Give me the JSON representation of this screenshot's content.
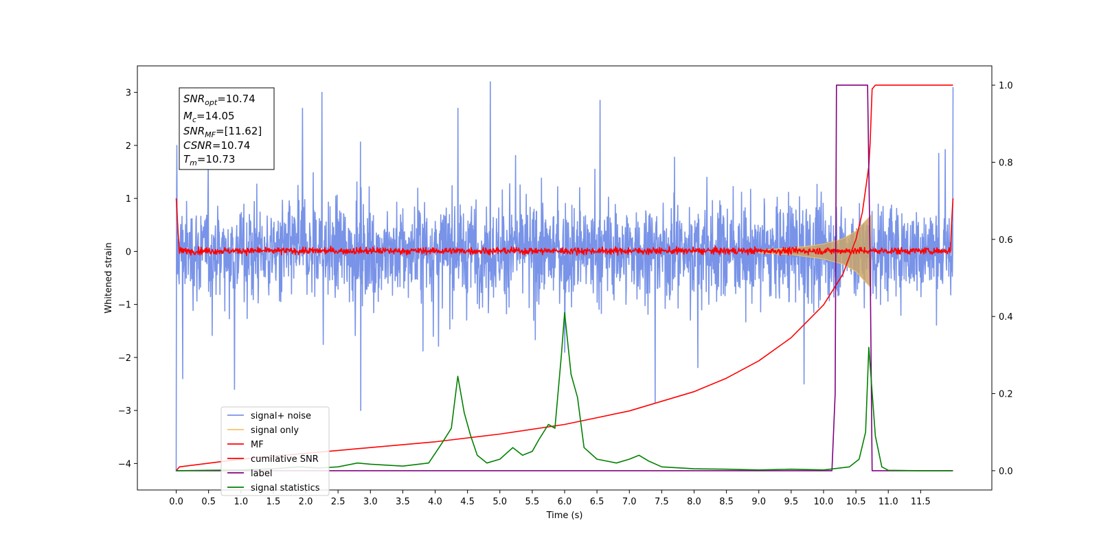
{
  "chart_data": {
    "type": "line",
    "title": "",
    "xlabel": "Time (s)",
    "ylabel": "Whitened strain",
    "xlim": [
      -0.6,
      12.6
    ],
    "ylim": [
      -4.5,
      3.5
    ],
    "y2lim": [
      -0.05,
      1.05
    ],
    "x_ticks": [
      "0.0",
      "0.5",
      "1.0",
      "1.5",
      "2.0",
      "2.5",
      "3.0",
      "3.5",
      "4.0",
      "4.5",
      "5.0",
      "5.5",
      "6.0",
      "6.5",
      "7.0",
      "7.5",
      "8.0",
      "8.5",
      "9.0",
      "9.5",
      "10.0",
      "10.5",
      "11.0",
      "11.5"
    ],
    "y_ticks": [
      "3",
      "2",
      "1",
      "0",
      "−1",
      "−2",
      "−3",
      "−4"
    ],
    "y2_ticks": [
      "0.0",
      "0.2",
      "0.4",
      "0.6",
      "0.8",
      "1.0"
    ],
    "grid": false,
    "legend_position": "lower-left",
    "annotation": {
      "snr_opt": "=10.74",
      "mc": "=14.05",
      "snr_mf": "=[11.62]",
      "csnr": "=10.74",
      "tm": "=10.73"
    },
    "series": [
      {
        "name": "signal+ noise",
        "color": "#7893e8",
        "kind": "noise band",
        "x_range": [
          0,
          12
        ],
        "y_typical_range": [
          -1.6,
          1.6
        ],
        "peak_values": [
          {
            "x": 0.0,
            "y": -4.15
          },
          {
            "x": 0.01,
            "y": 2.0
          },
          {
            "x": 0.1,
            "y": -2.4
          },
          {
            "x": 0.9,
            "y": -2.6
          },
          {
            "x": 1.95,
            "y": 2.7
          },
          {
            "x": 2.25,
            "y": 3.0
          },
          {
            "x": 2.85,
            "y": -3.0
          },
          {
            "x": 4.35,
            "y": 2.7
          },
          {
            "x": 4.85,
            "y": 3.2
          },
          {
            "x": 6.0,
            "y": -1.9
          },
          {
            "x": 6.55,
            "y": 2.85
          },
          {
            "x": 7.4,
            "y": -2.85
          },
          {
            "x": 9.7,
            "y": -2.5
          },
          {
            "x": 12.0,
            "y": 3.1
          }
        ]
      },
      {
        "name": "signal only",
        "color": "#f5c26b",
        "kind": "chirp envelope",
        "points": [
          [
            9.0,
            0.03
          ],
          [
            9.5,
            0.06
          ],
          [
            10.0,
            0.14
          ],
          [
            10.3,
            0.24
          ],
          [
            10.5,
            0.38
          ],
          [
            10.65,
            0.58
          ],
          [
            10.73,
            0.68
          ]
        ]
      },
      {
        "name": "MF",
        "color": "#ff0000",
        "kind": "noise band",
        "x_range": [
          0,
          12
        ],
        "y_typical_range": [
          -0.1,
          0.12
        ],
        "endpoints": [
          [
            0.0,
            1.0
          ],
          [
            12.0,
            1.0
          ]
        ]
      },
      {
        "name": "cumilative SNR",
        "color": "#ff0000",
        "axis": "right",
        "points": [
          [
            0.0,
            0.0
          ],
          [
            0.05,
            0.01
          ],
          [
            1.0,
            0.03
          ],
          [
            2.0,
            0.045
          ],
          [
            3.0,
            0.06
          ],
          [
            4.0,
            0.075
          ],
          [
            5.0,
            0.095
          ],
          [
            6.0,
            0.12
          ],
          [
            7.0,
            0.155
          ],
          [
            8.0,
            0.205
          ],
          [
            8.5,
            0.24
          ],
          [
            9.0,
            0.285
          ],
          [
            9.5,
            0.345
          ],
          [
            10.0,
            0.43
          ],
          [
            10.3,
            0.51
          ],
          [
            10.5,
            0.6
          ],
          [
            10.6,
            0.67
          ],
          [
            10.7,
            0.79
          ],
          [
            10.72,
            0.85
          ],
          [
            10.75,
            0.99
          ],
          [
            10.8,
            1.0
          ],
          [
            12.0,
            1.0
          ]
        ]
      },
      {
        "name": "label",
        "color": "#800080",
        "axis": "right",
        "points": [
          [
            0.0,
            0.0
          ],
          [
            10.13,
            0.0
          ],
          [
            10.18,
            0.2
          ],
          [
            10.2,
            1.0
          ],
          [
            10.68,
            1.0
          ],
          [
            10.72,
            0.55
          ],
          [
            10.75,
            0.0
          ],
          [
            12.0,
            0.0
          ]
        ]
      },
      {
        "name": "signal statistics",
        "color": "#008000",
        "axis": "right",
        "points": [
          [
            0.0,
            0.0
          ],
          [
            0.5,
            0.001
          ],
          [
            1.0,
            0.002
          ],
          [
            1.5,
            0.005
          ],
          [
            1.9,
            0.01
          ],
          [
            2.2,
            0.007
          ],
          [
            2.5,
            0.01
          ],
          [
            2.8,
            0.02
          ],
          [
            3.0,
            0.017
          ],
          [
            3.5,
            0.012
          ],
          [
            3.9,
            0.02
          ],
          [
            4.1,
            0.07
          ],
          [
            4.25,
            0.11
          ],
          [
            4.35,
            0.245
          ],
          [
            4.45,
            0.15
          ],
          [
            4.55,
            0.09
          ],
          [
            4.65,
            0.04
          ],
          [
            4.8,
            0.02
          ],
          [
            5.0,
            0.03
          ],
          [
            5.2,
            0.06
          ],
          [
            5.35,
            0.04
          ],
          [
            5.5,
            0.05
          ],
          [
            5.6,
            0.08
          ],
          [
            5.75,
            0.12
          ],
          [
            5.85,
            0.11
          ],
          [
            5.95,
            0.3
          ],
          [
            6.0,
            0.41
          ],
          [
            6.1,
            0.25
          ],
          [
            6.2,
            0.19
          ],
          [
            6.3,
            0.06
          ],
          [
            6.5,
            0.03
          ],
          [
            6.8,
            0.02
          ],
          [
            7.0,
            0.03
          ],
          [
            7.15,
            0.04
          ],
          [
            7.3,
            0.025
          ],
          [
            7.5,
            0.01
          ],
          [
            8.0,
            0.005
          ],
          [
            8.5,
            0.004
          ],
          [
            9.0,
            0.002
          ],
          [
            9.5,
            0.004
          ],
          [
            10.0,
            0.002
          ],
          [
            10.4,
            0.01
          ],
          [
            10.55,
            0.03
          ],
          [
            10.65,
            0.1
          ],
          [
            10.7,
            0.32
          ],
          [
            10.8,
            0.09
          ],
          [
            10.9,
            0.01
          ],
          [
            11.0,
            0.001
          ],
          [
            11.5,
            0.0
          ],
          [
            11.99,
            0.0
          ]
        ]
      }
    ]
  }
}
